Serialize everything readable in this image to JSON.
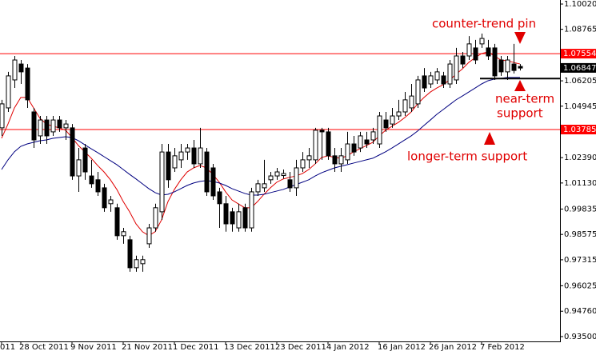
{
  "chart_data": {
    "type": "candlestick",
    "categories": [
      "011",
      null,
      null,
      "28 Oct 2011",
      null,
      null,
      null,
      null,
      null,
      null,
      null,
      "9 Nov 2011",
      null,
      null,
      null,
      null,
      null,
      null,
      null,
      "21 Nov 2011",
      null,
      null,
      null,
      null,
      null,
      null,
      null,
      "1 Dec 2011",
      null,
      null,
      null,
      null,
      null,
      null,
      null,
      "13 Dec 2011",
      null,
      null,
      null,
      null,
      null,
      null,
      null,
      "23 Dec 2011",
      null,
      null,
      null,
      null,
      null,
      null,
      null,
      "4 Jan 2012",
      null,
      null,
      null,
      null,
      null,
      null,
      null,
      "16 Jan 2012",
      null,
      null,
      null,
      null,
      null,
      null,
      null,
      "26 Jan 2012",
      null,
      null,
      null,
      null,
      null,
      null,
      null,
      "7 Feb 2012",
      null,
      null,
      null,
      null,
      null,
      null
    ],
    "open": [
      1.0387,
      1.0486,
      1.0625,
      1.0704,
      1.0684,
      1.0466,
      1.0347,
      1.0426,
      1.0367,
      1.0426,
      1.0387,
      1.0387,
      1.0148,
      1.0287,
      1.0148,
      1.0129,
      1.0089,
      1.001,
      0.999,
      0.9851,
      0.9831,
      0.9692,
      0.9712,
      0.9811,
      0.989,
      0.997,
      1.0267,
      1.0188,
      1.0228,
      1.0267,
      1.0287,
      1.0208,
      1.0267,
      1.0188,
      1.0069,
      1.001,
      0.997,
      0.989,
      0.999,
      0.989,
      1.0069,
      1.0089,
      1.0129,
      1.0148,
      1.015,
      1.0129,
      1.0089,
      1.0188,
      1.0228,
      1.0228,
      1.0375,
      1.0367,
      1.0248,
      1.0208,
      1.0228,
      1.0307,
      1.0287,
      1.0327,
      1.0327,
      1.0307,
      1.0426,
      1.0406,
      1.0446,
      1.0466,
      1.0486,
      1.0506,
      1.0645,
      1.0605,
      1.0625,
      1.0645,
      1.0605,
      1.0625,
      1.0744,
      1.0744,
      1.0784,
      1.0804,
      1.0784,
      1.0784,
      1.0724,
      1.0665,
      1.0704,
      1.0692
    ],
    "high": [
      1.0526,
      1.0665,
      1.0744,
      1.0724,
      1.0704,
      1.0486,
      1.0446,
      1.0446,
      1.0446,
      1.0446,
      1.0426,
      1.0406,
      1.0287,
      1.0307,
      1.0228,
      1.0168,
      1.0109,
      1.0049,
      1.001,
      0.989,
      0.9851,
      0.9752,
      0.9752,
      0.991,
      1.001,
      1.0307,
      1.0307,
      1.0287,
      1.0307,
      1.0307,
      1.0327,
      1.0387,
      1.0287,
      1.0208,
      1.0089,
      1.0049,
      0.999,
      1.001,
      1.001,
      1.0089,
      1.0129,
      1.0228,
      1.0168,
      1.0188,
      1.018,
      1.0168,
      1.0228,
      1.0267,
      1.0287,
      1.0387,
      1.0387,
      1.0387,
      1.0287,
      1.0287,
      1.0367,
      1.0347,
      1.0367,
      1.0367,
      1.0387,
      1.0466,
      1.0466,
      1.0486,
      1.0526,
      1.0565,
      1.0605,
      1.0645,
      1.0684,
      1.0665,
      1.0684,
      1.0665,
      1.0724,
      1.0784,
      1.0764,
      1.0843,
      1.0824,
      1.0855,
      1.0824,
      1.0804,
      1.0744,
      1.0744,
      1.0804,
      1.0704
    ],
    "low": [
      1.0347,
      1.0466,
      1.0585,
      1.0605,
      1.0486,
      1.0287,
      1.0307,
      1.0307,
      1.0347,
      1.0367,
      1.0327,
      1.0129,
      1.0069,
      1.0129,
      1.0089,
      1.0049,
      0.997,
      0.997,
      0.9831,
      0.9811,
      0.9672,
      0.9672,
      0.9672,
      0.9791,
      0.9871,
      0.993,
      1.0089,
      1.0168,
      1.0188,
      1.0228,
      1.0188,
      1.0188,
      1.0049,
      1.0029,
      0.989,
      0.9871,
      0.9871,
      0.9871,
      0.9871,
      0.9871,
      1.0049,
      1.0069,
      1.0109,
      1.0129,
      1.0135,
      1.0069,
      1.0049,
      1.0168,
      1.0188,
      1.0208,
      1.0228,
      1.0228,
      1.0168,
      1.0168,
      1.0208,
      1.0248,
      1.0267,
      1.0287,
      1.0307,
      1.0287,
      1.0367,
      1.0387,
      1.0426,
      1.0446,
      1.0466,
      1.0486,
      1.0565,
      1.0585,
      1.0605,
      1.0585,
      1.0585,
      1.0605,
      1.0684,
      1.0724,
      1.0704,
      1.0784,
      1.0724,
      1.0625,
      1.0645,
      1.0625,
      1.0657,
      1.0672
    ],
    "close": [
      1.0506,
      1.0645,
      1.0724,
      1.0665,
      1.0526,
      1.0327,
      1.0426,
      1.0347,
      1.0426,
      1.0387,
      1.0406,
      1.0148,
      1.0228,
      1.0168,
      1.0109,
      1.0069,
      0.999,
      1.0029,
      0.9851,
      0.9871,
      0.9692,
      0.9732,
      0.9732,
      0.989,
      0.999,
      1.0267,
      1.0129,
      1.0248,
      1.0267,
      1.0287,
      1.0208,
      1.0287,
      1.0069,
      1.0049,
      1.001,
      0.991,
      0.991,
      0.997,
      0.989,
      1.0069,
      1.0109,
      1.0109,
      1.0148,
      1.0168,
      1.016,
      1.0089,
      1.0188,
      1.0228,
      1.0248,
      1.0375,
      1.0367,
      1.0248,
      1.0208,
      1.0248,
      1.0307,
      1.0267,
      1.0347,
      1.0307,
      1.0367,
      1.0446,
      1.0387,
      1.0446,
      1.0466,
      1.0526,
      1.0545,
      1.0625,
      1.0585,
      1.0645,
      1.0665,
      1.0605,
      1.0704,
      1.0744,
      1.0704,
      1.0804,
      1.0724,
      1.0831,
      1.0744,
      1.0645,
      1.0665,
      1.0724,
      1.0672,
      1.0684
    ],
    "up_color": "#ffffff",
    "down_color": "#000000",
    "series": [
      {
        "color": "#e00000",
        "values": [
          1.0335,
          1.0406,
          1.0486,
          1.0538,
          1.0538,
          1.0486,
          1.0434,
          1.0406,
          1.0395,
          1.0387,
          1.0375,
          1.0339,
          1.0299,
          1.0268,
          1.0236,
          1.02,
          1.0168,
          1.0129,
          1.0081,
          1.0021,
          0.997,
          0.991,
          0.9871,
          0.9851,
          0.9871,
          0.993,
          1.0021,
          1.0081,
          1.0129,
          1.0168,
          1.0188,
          1.02,
          1.0188,
          1.0156,
          1.0117,
          1.0069,
          1.0029,
          1.0009,
          0.999,
          0.999,
          1.0021,
          1.0057,
          1.0089,
          1.0117,
          1.0133,
          1.0141,
          1.0148,
          1.016,
          1.018,
          1.0208,
          1.024,
          1.0248,
          1.024,
          1.0236,
          1.0248,
          1.0268,
          1.0283,
          1.0299,
          1.0315,
          1.0347,
          1.0375,
          1.0395,
          1.0414,
          1.0438,
          1.0466,
          1.0506,
          1.0538,
          1.0565,
          1.0585,
          1.0601,
          1.0625,
          1.0653,
          1.068,
          1.0712,
          1.0736,
          1.0756,
          1.0764,
          1.0744,
          1.0724,
          1.072,
          1.0712,
          1.0704
        ]
      },
      {
        "color": "#000080",
        "values": [
          1.018,
          1.0228,
          1.0268,
          1.0295,
          1.0307,
          1.0315,
          1.0323,
          1.0327,
          1.0335,
          1.0339,
          1.0343,
          1.0339,
          1.0323,
          1.0303,
          1.0283,
          1.0264,
          1.0244,
          1.0224,
          1.0204,
          1.018,
          1.0156,
          1.0133,
          1.0109,
          1.0085,
          1.0065,
          1.0053,
          1.0057,
          1.0069,
          1.0085,
          1.0101,
          1.0113,
          1.0121,
          1.0125,
          1.0121,
          1.0113,
          1.0101,
          1.0085,
          1.0073,
          1.0061,
          1.0053,
          1.0053,
          1.0057,
          1.0065,
          1.0073,
          1.0081,
          1.0093,
          1.0105,
          1.0117,
          1.0129,
          1.0148,
          1.0164,
          1.0176,
          1.0188,
          1.0196,
          1.0204,
          1.0212,
          1.022,
          1.0228,
          1.0236,
          1.0252,
          1.0268,
          1.0287,
          1.0307,
          1.0327,
          1.0347,
          1.0371,
          1.0399,
          1.0426,
          1.0454,
          1.0478,
          1.0502,
          1.0526,
          1.0545,
          1.0565,
          1.0585,
          1.0605,
          1.0621,
          1.0629,
          1.0633,
          1.0637,
          1.0637,
          1.0637
        ]
      }
    ],
    "ylim": [
      0.9334,
      1.1022
    ],
    "yticks": [
      {
        "value": 0.935,
        "label": "0.93500"
      },
      {
        "value": 0.9476,
        "label": "0.94760"
      },
      0.96025,
      0.97315,
      0.98575,
      0.99835,
      {
        "value": 1.0113,
        "label": "1.01130"
      },
      {
        "value": 1.0239,
        "label": "1.02390"
      },
      1.04945,
      1.06205,
      1.08765,
      {
        "value": 1.1002,
        "label": "1.10020"
      }
    ],
    "levels": [
      {
        "value": 1.07554,
        "color": "#ff0000"
      },
      {
        "value": 1.03785,
        "color": "#ff0000"
      }
    ],
    "current_price": 1.06847,
    "support_line": 1.0632,
    "annotations": [
      "counter-trend pin",
      "near-term",
      "support",
      "longer-term support"
    ]
  }
}
